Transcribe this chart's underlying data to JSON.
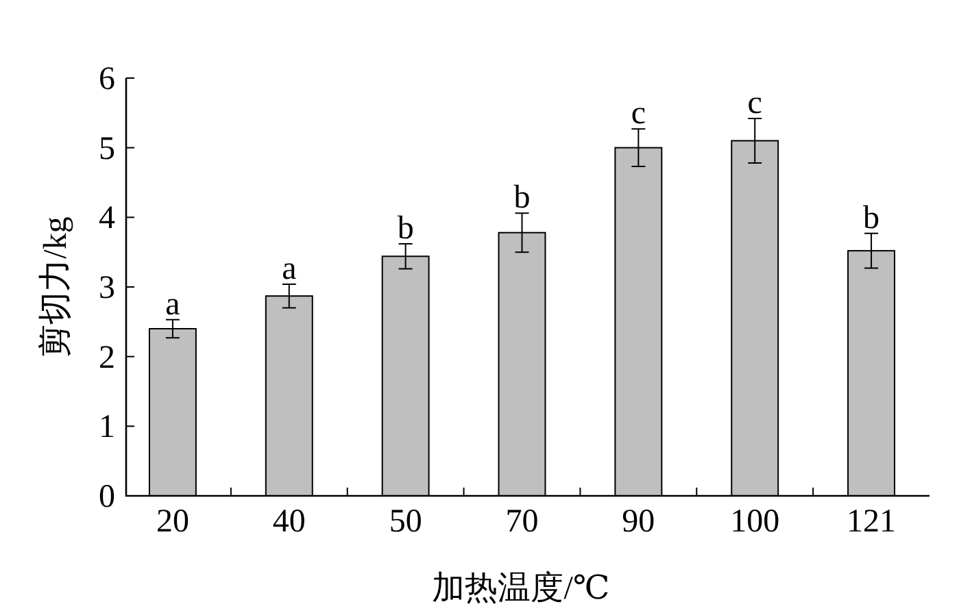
{
  "chart_data": {
    "type": "bar",
    "xlabel": "加热温度/℃",
    "ylabel": "剪切力/kg",
    "categories": [
      "20",
      "40",
      "50",
      "70",
      "90",
      "100",
      "121"
    ],
    "values": [
      2.4,
      2.87,
      3.44,
      3.78,
      5.0,
      5.1,
      3.52
    ],
    "errors": [
      0.13,
      0.17,
      0.18,
      0.28,
      0.27,
      0.32,
      0.25
    ],
    "color": "#bfbfbf",
    "ylim": [
      0,
      6
    ],
    "yticks": [
      0,
      1,
      2,
      3,
      4,
      5,
      6
    ],
    "annotations": [
      {
        "text": "a",
        "x": "20",
        "y": 2.53
      },
      {
        "text": "a",
        "x": "40",
        "y": 3.04
      },
      {
        "text": "b",
        "x": "50",
        "y": 3.62
      },
      {
        "text": "b",
        "x": "70",
        "y": 4.06
      },
      {
        "text": "c",
        "x": "90",
        "y": 5.27
      },
      {
        "text": "c",
        "x": "100",
        "y": 5.42
      },
      {
        "text": "b",
        "x": "121",
        "y": 3.77
      }
    ]
  }
}
